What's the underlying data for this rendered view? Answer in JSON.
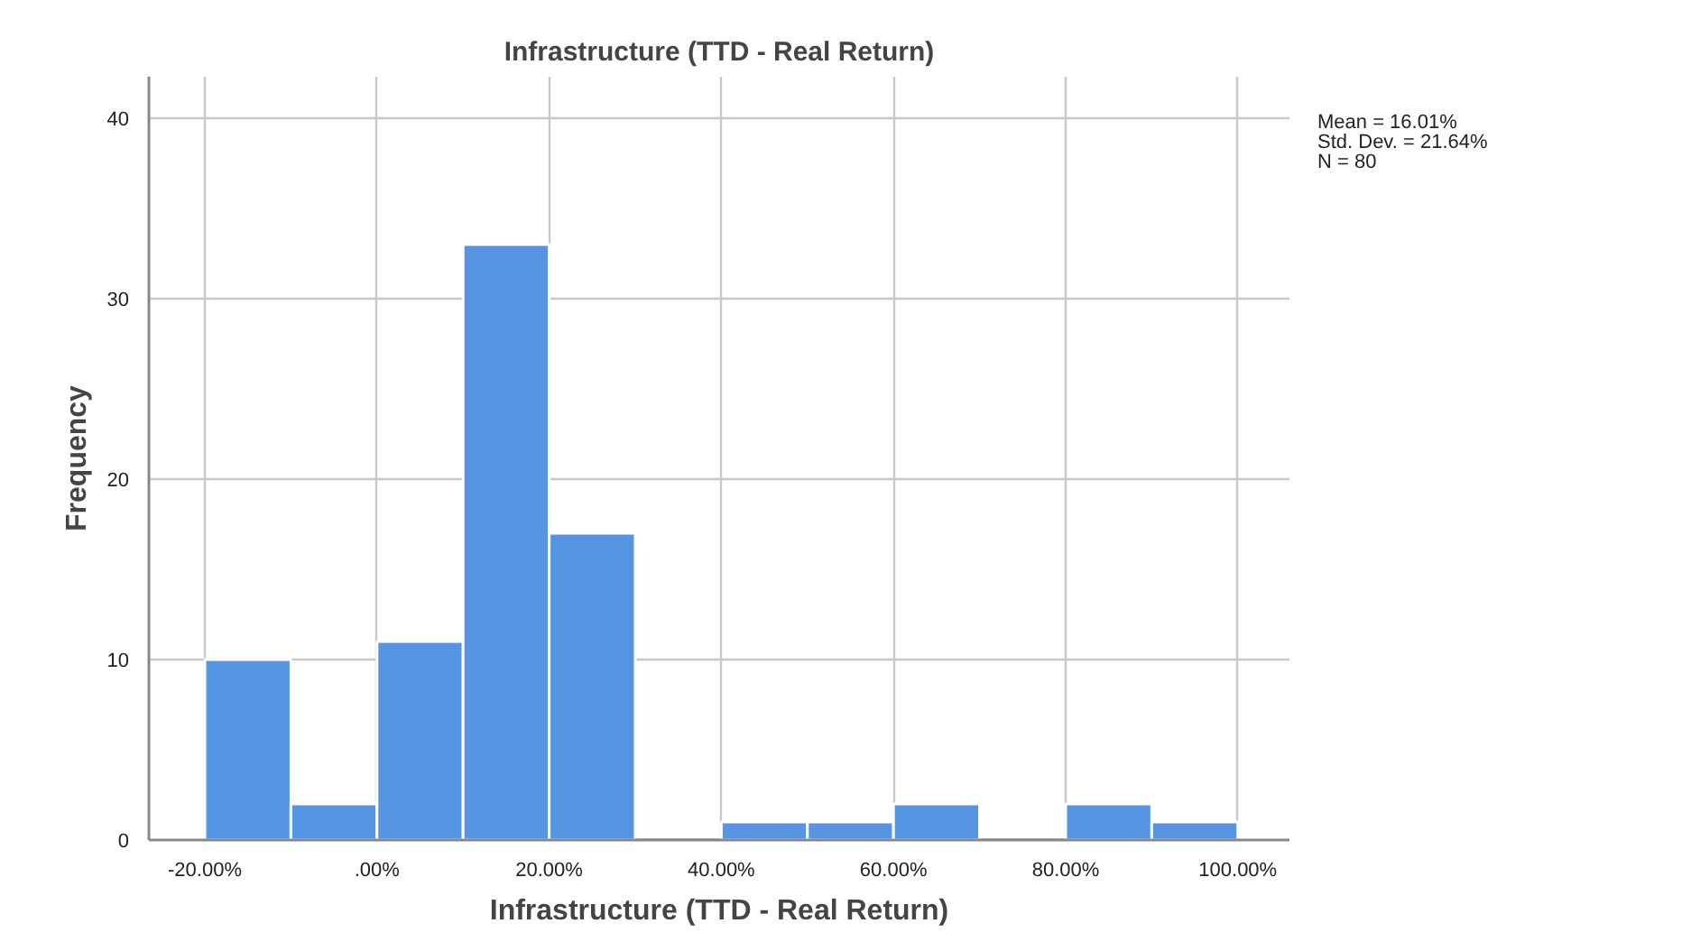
{
  "chart_data": {
    "type": "histogram",
    "title": "Infrastructure (TTD - Real Return)",
    "xlabel": "Infrastructure (TTD - Real Return)",
    "ylabel": "Frequency",
    "bins": [
      -20,
      -10,
      0,
      10,
      20,
      30,
      40,
      50,
      60,
      70,
      80,
      90,
      100
    ],
    "values": [
      10,
      2,
      11,
      33,
      17,
      0,
      1,
      1,
      2,
      0,
      2,
      1
    ],
    "color": "#5694e4",
    "xlim": [
      -26.5,
      106
    ],
    "ylim": [
      0,
      42.3
    ],
    "xticks": [
      {
        "value": -20,
        "label": "-20.00%"
      },
      {
        "value": 0,
        "label": ".00%"
      },
      {
        "value": 20,
        "label": "20.00%"
      },
      {
        "value": 40,
        "label": "40.00%"
      },
      {
        "value": 60,
        "label": "60.00%"
      },
      {
        "value": 80,
        "label": "80.00%"
      },
      {
        "value": 100,
        "label": "100.00%"
      }
    ],
    "yticks": [
      0,
      10,
      20,
      30,
      40
    ],
    "grid": true,
    "annotations": [
      "Mean = 16.01%",
      "Std. Dev. = 21.64%",
      "N = 80"
    ]
  }
}
